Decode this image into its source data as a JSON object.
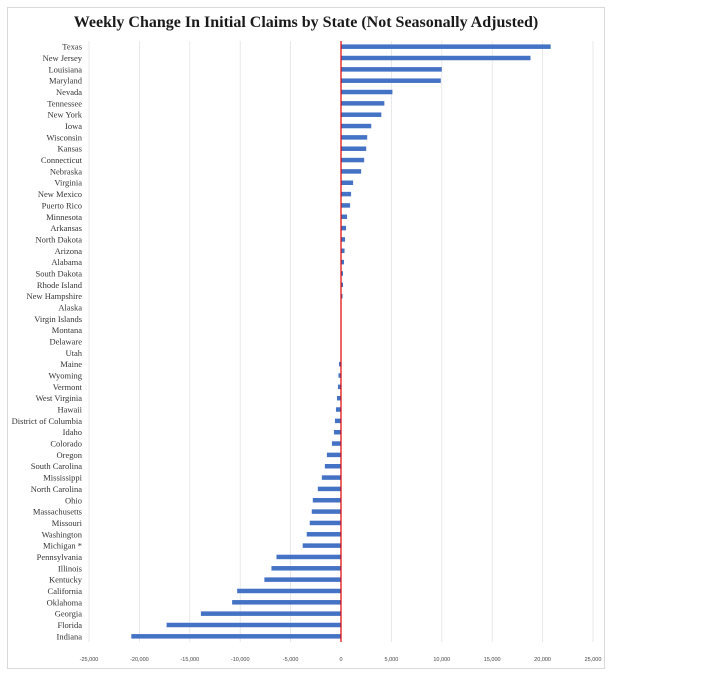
{
  "chart_data": {
    "type": "bar",
    "orientation": "horizontal",
    "title": "Weekly Change In Initial Claims by State (Not Seasonally Adjusted)",
    "xlabel": "",
    "ylabel": "",
    "xlim": [
      -25000,
      25000
    ],
    "ticks": [
      -25000,
      -20000,
      -15000,
      -10000,
      -5000,
      0,
      5000,
      10000,
      15000,
      20000,
      25000
    ],
    "tick_labels": [
      "-25,000",
      "-20,000",
      "-15,000",
      "-10,000",
      "-5,000",
      "0",
      "5,000",
      "10,000",
      "15,000",
      "20,000",
      "25,000"
    ],
    "grid": true,
    "categories": [
      "Texas",
      "New Jersey",
      "Louisiana",
      "Maryland",
      "Nevada",
      "Tennessee",
      "New York",
      "Iowa",
      "Wisconsin",
      "Kansas",
      "Connecticut",
      "Nebraska",
      "Virginia",
      "New Mexico",
      "Puerto Rico",
      "Minnesota",
      "Arkansas",
      "North Dakota",
      "Arizona",
      "Alabama",
      "South Dakota",
      "Rhode Island",
      "New Hampshire",
      "Alaska",
      "Virgin Islands",
      "Montana",
      "Delaware",
      "Utah",
      "Maine",
      "Wyoming",
      "Vermont",
      "West Virginia",
      "Hawaii",
      "District of Columbia",
      "Idaho",
      "Colorado",
      "Oregon",
      "South Carolina",
      "Mississippi",
      "North Carolina",
      "Ohio",
      "Massachusetts",
      "Missouri",
      "Washington",
      "Michigan *",
      "Pennsylvania",
      "Illinois",
      "Kentucky",
      "California",
      "Oklahoma",
      "Georgia",
      "Florida",
      "Indiana"
    ],
    "values": [
      20800,
      18800,
      10000,
      9900,
      5100,
      4300,
      4000,
      3000,
      2600,
      2500,
      2300,
      2000,
      1200,
      1000,
      900,
      600,
      500,
      400,
      350,
      300,
      200,
      200,
      150,
      50,
      0,
      0,
      0,
      -50,
      -200,
      -250,
      -300,
      -400,
      -500,
      -600,
      -700,
      -900,
      -1400,
      -1600,
      -1900,
      -2300,
      -2800,
      -2900,
      -3100,
      -3400,
      -3800,
      -6400,
      -6900,
      -7600,
      -10300,
      -10800,
      -13900,
      -17300,
      -20800
    ],
    "colors": {
      "bar": "#4472c4",
      "zero_line": "#e00000",
      "grid": "#e3e3e3"
    }
  }
}
